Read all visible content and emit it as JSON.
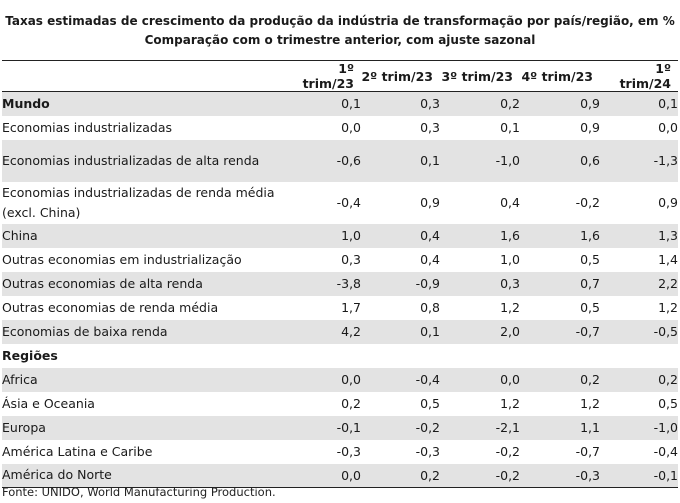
{
  "title": {
    "line1": "Taxas estimadas de crescimento da produção da indústria de transformação por país/região, em %",
    "line2": "Comparação com o trimestre anterior, com ajuste sazonal"
  },
  "columns": [
    "1º trim/23",
    "2º trim/23",
    "3º trim/23",
    "4º trim/23",
    "1º trim/24"
  ],
  "rows": [
    {
      "label": "Mundo",
      "values": [
        "0,1",
        "0,3",
        "0,2",
        "0,9",
        "0,1"
      ]
    },
    {
      "label": "Economias industrializadas",
      "values": [
        "0,0",
        "0,3",
        "0,1",
        "0,9",
        "0,0"
      ]
    },
    {
      "label": "Economias industrializadas de alta renda",
      "values": [
        "-0,6",
        "0,1",
        "-1,0",
        "0,6",
        "-1,3"
      ]
    },
    {
      "label": "Economias industrializadas de renda média (excl. China)",
      "values": [
        "-0,4",
        "0,9",
        "0,4",
        "-0,2",
        "0,9"
      ]
    },
    {
      "label": "China",
      "values": [
        "1,0",
        "0,4",
        "1,6",
        "1,6",
        "1,3"
      ]
    },
    {
      "label": "Outras economias em industrialização",
      "values": [
        "0,3",
        "0,4",
        "1,0",
        "0,5",
        "1,4"
      ]
    },
    {
      "label": "Outras economias de alta renda",
      "values": [
        "-3,8",
        "-0,9",
        "0,3",
        "0,7",
        "2,2"
      ]
    },
    {
      "label": "Outras economias de renda média",
      "values": [
        "1,7",
        "0,8",
        "1,2",
        "0,5",
        "1,2"
      ]
    },
    {
      "label": "Economias de baixa renda",
      "values": [
        "4,2",
        "0,1",
        "2,0",
        "-0,7",
        "-0,5"
      ]
    },
    {
      "label": "Regiões",
      "values": [
        "",
        "",
        "",
        "",
        ""
      ]
    },
    {
      "label": "Africa",
      "values": [
        "0,0",
        "-0,4",
        "0,0",
        "0,2",
        "0,2"
      ]
    },
    {
      "label": "Ásia e Oceania",
      "values": [
        "0,2",
        "0,5",
        "1,2",
        "1,2",
        "0,5"
      ]
    },
    {
      "label": "Europa",
      "values": [
        "-0,1",
        "-0,2",
        "-2,1",
        "1,1",
        "-1,0"
      ]
    },
    {
      "label": "América Latina e Caribe",
      "values": [
        "-0,3",
        "-0,3",
        "-0,2",
        "-0,7",
        "-0,4"
      ]
    },
    {
      "label": "América do Norte",
      "values": [
        "0,0",
        "0,2",
        "-0,2",
        "-0,3",
        "-0,1"
      ]
    }
  ],
  "source": "Fonte: UNIDO, World Manufacturing Production.",
  "colors": {
    "shade": "#e3e3e3",
    "rule": "#222222"
  }
}
